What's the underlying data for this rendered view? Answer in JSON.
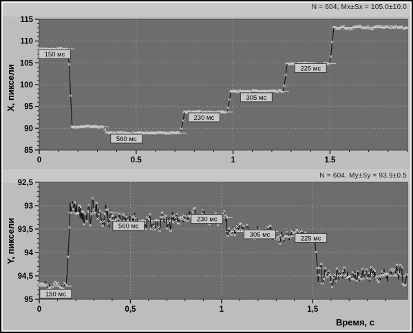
{
  "figure": {
    "bg": "#bdbdbd",
    "strip_bg": "#c8c8c8",
    "plot_bg": "#6d6d6d",
    "frame_color": "#3d3d3d",
    "grid_color": "#aeaeae",
    "tick_color": "#1a1a1a",
    "line_color": "#161616",
    "marker_color": "#dedede",
    "ref_line_color": "#d6d6d6",
    "label_box_bg": "#c9c9c9",
    "label_box_border": "#3a3a3a",
    "label_text_color": "#000000"
  },
  "chart_data": [
    {
      "type": "line",
      "title": "",
      "ylabel": "X, пиксели",
      "xlabel": "",
      "annotation": "N = 604, Mx±Sx = 105.0±10.0",
      "n_points": 604,
      "xlim": [
        0,
        1.9
      ],
      "ylim": [
        85,
        115
      ],
      "y_inverted": false,
      "grid": true,
      "legend": "none",
      "seed": 7,
      "noise": 0.12,
      "x_minor_step": 0.1,
      "y_minor_step": 1,
      "xticks": [
        {
          "v": 0,
          "label": "0"
        },
        {
          "v": 0.5,
          "label": "0.5"
        },
        {
          "v": 1,
          "label": "1"
        },
        {
          "v": 1.5,
          "label": "1.5"
        }
      ],
      "yticks": [
        {
          "v": 85,
          "label": "85"
        },
        {
          "v": 90,
          "label": "90"
        },
        {
          "v": 95,
          "label": "95"
        },
        {
          "v": 100,
          "label": "100"
        },
        {
          "v": 105,
          "label": "105"
        },
        {
          "v": 110,
          "label": "110"
        },
        {
          "v": 115,
          "label": "115"
        }
      ],
      "segments": [
        {
          "t0": 0.0,
          "t1": 0.15,
          "level": 108.2,
          "noise": 0.14,
          "label": "150 мс",
          "label_t": 0.08,
          "label_v": 107.0
        },
        {
          "t0": 0.17,
          "t1": 0.33,
          "level": 90.3,
          "noise": 0.14
        },
        {
          "t0": 0.35,
          "t1": 0.73,
          "level": 88.9,
          "noise": 0.14,
          "label": "560 мс",
          "label_t": 0.45,
          "label_v": 87.6
        },
        {
          "t0": 0.75,
          "t1": 0.97,
          "level": 93.7,
          "noise": 0.14,
          "label": "230 мс",
          "label_t": 0.85,
          "label_v": 92.5
        },
        {
          "t0": 0.99,
          "t1": 1.26,
          "level": 98.5,
          "noise": 0.14,
          "label": "305 мс",
          "label_t": 1.12,
          "label_v": 97.1
        },
        {
          "t0": 1.28,
          "t1": 1.5,
          "level": 104.8,
          "noise": 0.14,
          "label": "225 мс",
          "label_t": 1.4,
          "label_v": 103.8
        },
        {
          "t0": 1.52,
          "t1": 1.9,
          "level": 113.1,
          "noise": 0.22
        }
      ]
    },
    {
      "type": "line",
      "title": "",
      "ylabel": "Y, пиксели",
      "xlabel": "Время, с",
      "annotation": "N = 604, My±Sy = 93.9±0.5",
      "n_points": 604,
      "xlim": [
        0,
        2.02
      ],
      "ylim": [
        92.5,
        95
      ],
      "y_inverted": true,
      "grid": true,
      "legend": "none",
      "seed": 29,
      "noise": 0.13,
      "x_minor_step": 0.1,
      "y_minor_step": 0.1,
      "xticks": [
        {
          "v": 0,
          "label": "0"
        },
        {
          "v": 0.5,
          "label": "0,5"
        },
        {
          "v": 1,
          "label": "1"
        },
        {
          "v": 1.5,
          "label": "1,5"
        }
      ],
      "yticks": [
        {
          "v": 92.5,
          "label": "92,5"
        },
        {
          "v": 93,
          "label": "93"
        },
        {
          "v": 93.5,
          "label": "93,5"
        },
        {
          "v": 94,
          "label": "94"
        },
        {
          "v": 94.5,
          "label": "94,5"
        },
        {
          "v": 95,
          "label": "95"
        }
      ],
      "segments": [
        {
          "t0": 0.0,
          "t1": 0.15,
          "level": 94.72,
          "noise": 0.06,
          "label": "150 мс",
          "label_t": 0.09,
          "label_v": 94.88
        },
        {
          "t0": 0.17,
          "t1": 0.4,
          "level": 93.15,
          "noise": 0.24
        },
        {
          "t0": 0.4,
          "t1": 0.74,
          "level": 93.32,
          "noise": 0.15,
          "label": "560 мс",
          "label_t": 0.49,
          "label_v": 93.43
        },
        {
          "t0": 0.74,
          "t1": 1.03,
          "level": 93.25,
          "noise": 0.12,
          "label": "230 мс",
          "label_t": 0.92,
          "label_v": 93.28
        },
        {
          "t0": 1.03,
          "t1": 1.28,
          "level": 93.55,
          "noise": 0.11,
          "label": "305 мс",
          "label_t": 1.21,
          "label_v": 93.61
        },
        {
          "t0": 1.28,
          "t1": 1.51,
          "level": 93.65,
          "noise": 0.1,
          "label": "225 мс",
          "label_t": 1.49,
          "label_v": 93.69
        },
        {
          "t0": 1.53,
          "t1": 2.02,
          "level": 94.5,
          "noise": 0.16
        }
      ]
    }
  ]
}
